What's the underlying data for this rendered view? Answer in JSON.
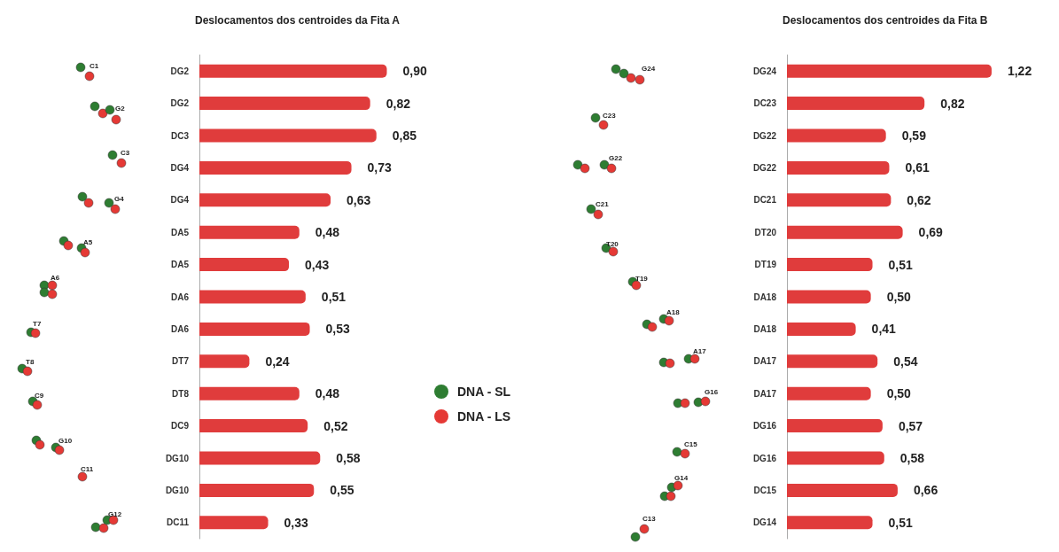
{
  "chart_data": [
    {
      "type": "bar",
      "orientation": "horizontal",
      "title": "Deslocamentos dos centroides da Fita A",
      "color": "#e03c3c",
      "categories": [
        "DG2",
        "DG2",
        "DC3",
        "DG4",
        "DG4",
        "DA5",
        "DA5",
        "DA6",
        "DA6",
        "DT7",
        "DT8",
        "DC9",
        "DG10",
        "DG10",
        "DC11"
      ],
      "values": [
        0.9,
        0.82,
        0.85,
        0.73,
        0.63,
        0.48,
        0.43,
        0.51,
        0.53,
        0.24,
        0.48,
        0.52,
        0.58,
        0.55,
        0.33
      ],
      "value_labels": [
        "0,90",
        "0,82",
        "0,85",
        "0,73",
        "0,63",
        "0,48",
        "0,43",
        "0,51",
        "0,53",
        "0,24",
        "0,48",
        "0,52",
        "0,58",
        "0,55",
        "0,33"
      ],
      "annotations": [
        "C1",
        "G2",
        "C3",
        "G4",
        "A5",
        "A6",
        "T7",
        "T8",
        "C9",
        "G10",
        "C11",
        "G12"
      ]
    },
    {
      "type": "bar",
      "orientation": "horizontal",
      "title": "Deslocamentos dos centroides da Fita B",
      "color": "#e03c3c",
      "categories": [
        "DG24",
        "DC23",
        "DG22",
        "DG22",
        "DC21",
        "DT20",
        "DT19",
        "DA18",
        "DA18",
        "DA17",
        "DA17",
        "DG16",
        "DG16",
        "DC15",
        "DG14"
      ],
      "values": [
        1.22,
        0.82,
        0.59,
        0.61,
        0.62,
        0.69,
        0.51,
        0.5,
        0.41,
        0.54,
        0.5,
        0.57,
        0.58,
        0.66,
        0.51
      ],
      "value_labels": [
        "1,22",
        "0,82",
        "0,59",
        "0,61",
        "0,62",
        "0,69",
        "0,51",
        "0,50",
        "0,41",
        "0,54",
        "0,50",
        "0,57",
        "0,58",
        "0,66",
        "0,51"
      ],
      "annotations": [
        "G24",
        "C23",
        "G22",
        "C21",
        "T20",
        "T19",
        "A18",
        "A17",
        "G16",
        "C15",
        "G14",
        "C13"
      ]
    },
    {
      "type": "other",
      "series": [
        {
          "name": "DNA - SL",
          "color": "#2e7d32"
        },
        {
          "name": "DNA - LS",
          "color": "#e53935"
        }
      ]
    }
  ]
}
